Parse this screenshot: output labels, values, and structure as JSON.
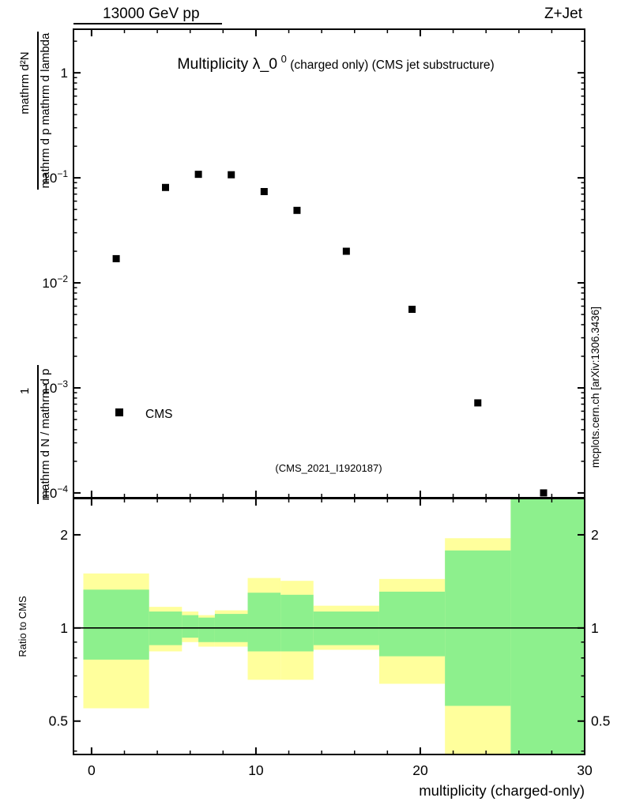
{
  "header": {
    "left_label": "13000 GeV pp",
    "right_label": "Z+Jet"
  },
  "title": {
    "main": "Multiplicity λ_0",
    "superscript": "0",
    "suffix": " (charged only) (CMS jet substructure)"
  },
  "legend": {
    "series_label": "CMS"
  },
  "watermark": {
    "analysis_code": "(CMS_2021_I1920187)"
  },
  "side_note": {
    "text": "mcplots.cern.ch [arXiv:1306.3436]"
  },
  "axis_labels": {
    "x_label": "multiplicity (charged-only)",
    "ratio_y_label": "Ratio to CMS",
    "y_frac_upper_num": "mathrm d²N",
    "y_frac_upper_den": "mathrm d p mathrm d lambda",
    "y_frac_lower_num": "1",
    "y_frac_lower_den": "mathrm d N / mathrm d p"
  },
  "colors": {
    "marker": "#000000",
    "band_inner_green": "#8df08d",
    "band_outer_yellow": "#ffff9c",
    "watermark_gray": "#a8a8a8",
    "side_note_gray": "#8c8c8c"
  },
  "chart_data": {
    "type": "scatter",
    "x_axis": {
      "label": "multiplicity (charged-only)",
      "range": [
        -1.1,
        30
      ],
      "major_ticks": [
        0,
        10,
        20,
        30
      ],
      "minor_tick_step": 2
    },
    "main_panel": {
      "y_scale": "log",
      "y_range": [
        9e-05,
        2.6
      ],
      "y_major_ticks": [
        {
          "value": 1,
          "label": "1"
        },
        {
          "value": 0.1,
          "base": "10",
          "exp": "−1"
        },
        {
          "value": 0.01,
          "base": "10",
          "exp": "−2"
        },
        {
          "value": 0.001,
          "base": "10",
          "exp": "−3"
        },
        {
          "value": 0.0001,
          "base": "10",
          "exp": "−4"
        }
      ],
      "series": [
        {
          "name": "CMS",
          "marker": "filled-square",
          "color": "#000000",
          "x": [
            1.5,
            4.5,
            6.5,
            8.5,
            10.5,
            12.5,
            15.5,
            19.5,
            23.5,
            27.5
          ],
          "y": [
            0.017,
            0.081,
            0.108,
            0.107,
            0.074,
            0.049,
            0.02,
            0.0056,
            0.00072,
            0.0001
          ]
        }
      ]
    },
    "ratio_panel": {
      "y_scale": "log",
      "y_range": [
        0.39,
        2.62
      ],
      "reference_line": 1,
      "y_major_ticks": [
        {
          "value": 2,
          "label": "2"
        },
        {
          "value": 1,
          "label": "1"
        },
        {
          "value": 0.5,
          "label": "0.5"
        }
      ],
      "y_minor_ticks": [
        0.4,
        0.6,
        0.7,
        0.8,
        0.9
      ],
      "bands": [
        {
          "xlow": -0.5,
          "xhigh": 3.5,
          "green": [
            0.79,
            1.33
          ],
          "yellow": [
            0.55,
            1.5
          ]
        },
        {
          "xlow": 3.5,
          "xhigh": 5.5,
          "green": [
            0.88,
            1.13
          ],
          "yellow": [
            0.84,
            1.17
          ]
        },
        {
          "xlow": 5.5,
          "xhigh": 6.5,
          "green": [
            0.93,
            1.1
          ],
          "yellow": [
            0.9,
            1.13
          ]
        },
        {
          "xlow": 6.5,
          "xhigh": 7.5,
          "green": [
            0.9,
            1.08
          ],
          "yellow": [
            0.87,
            1.1
          ]
        },
        {
          "xlow": 7.5,
          "xhigh": 9.5,
          "green": [
            0.9,
            1.11
          ],
          "yellow": [
            0.87,
            1.14
          ]
        },
        {
          "xlow": 9.5,
          "xhigh": 11.5,
          "green": [
            0.84,
            1.3
          ],
          "yellow": [
            0.68,
            1.45
          ]
        },
        {
          "xlow": 11.5,
          "xhigh": 13.5,
          "green": [
            0.84,
            1.28
          ],
          "yellow": [
            0.68,
            1.42
          ]
        },
        {
          "xlow": 13.5,
          "xhigh": 17.5,
          "green": [
            0.88,
            1.13
          ],
          "yellow": [
            0.85,
            1.18
          ]
        },
        {
          "xlow": 17.5,
          "xhigh": 21.5,
          "green": [
            0.81,
            1.31
          ],
          "yellow": [
            0.66,
            1.44
          ]
        },
        {
          "xlow": 21.5,
          "xhigh": 25.5,
          "green": [
            0.56,
            1.78
          ],
          "yellow": [
            0.35,
            1.95
          ]
        },
        {
          "xlow": 25.5,
          "xhigh": 30.0,
          "green": [
            0.3,
            2.7
          ],
          "yellow": [
            0.3,
            2.7
          ]
        }
      ]
    }
  }
}
